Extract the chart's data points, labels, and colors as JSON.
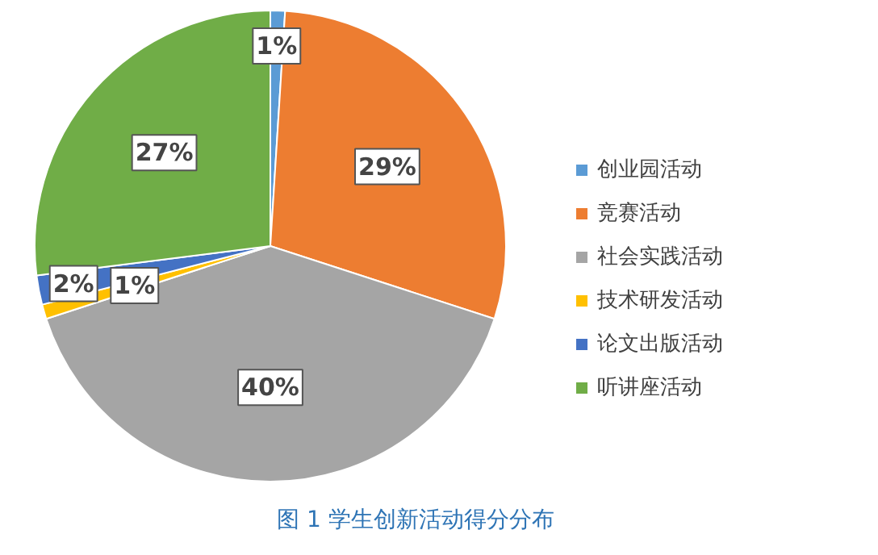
{
  "chart_data": {
    "type": "pie",
    "title": "图 1 学生创新活动得分分布",
    "categories": [
      "创业园活动",
      "竞赛活动",
      "社会实践活动",
      "技术研发活动",
      "论文出版活动",
      "听讲座活动"
    ],
    "values": [
      1,
      29,
      40,
      1,
      2,
      27
    ],
    "colors": [
      "#5b9bd5",
      "#ed7d31",
      "#a5a5a5",
      "#ffc000",
      "#4472c4",
      "#70ad47"
    ],
    "value_labels": [
      "1%",
      "29%",
      "40%",
      "1%",
      "2%",
      "27%"
    ],
    "legend": "right"
  }
}
